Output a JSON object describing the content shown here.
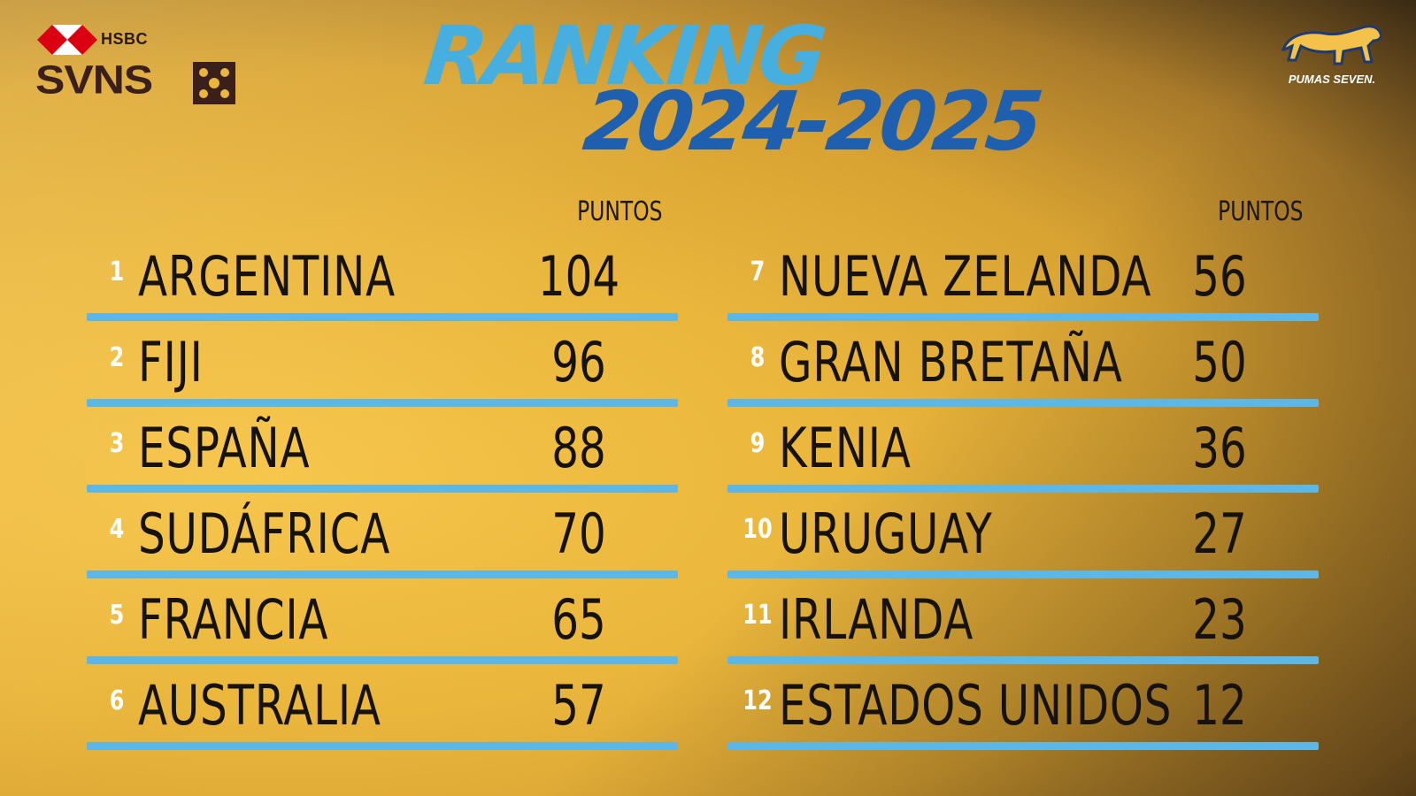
{
  "branding": {
    "hsbc": "HSBC",
    "svns": "SVNS",
    "pumas": "PUMAS SEVEN."
  },
  "colors": {
    "title_light_blue": "#47aee0",
    "title_dark_blue": "#1f5fb0",
    "row_bar": "#5cb6e6",
    "background": "#eab63c"
  },
  "title": {
    "line1": "RANKING",
    "line2": "2024-2025"
  },
  "points_header": "PUNTOS",
  "rankings": {
    "left": [
      {
        "rank": "1",
        "team": "ARGENTINA",
        "points": "104"
      },
      {
        "rank": "2",
        "team": "FIJI",
        "points": "96"
      },
      {
        "rank": "3",
        "team": "ESPAÑA",
        "points": "88"
      },
      {
        "rank": "4",
        "team": "SUDÁFRICA",
        "points": "70"
      },
      {
        "rank": "5",
        "team": "FRANCIA",
        "points": "65"
      },
      {
        "rank": "6",
        "team": "AUSTRALIA",
        "points": "57"
      }
    ],
    "right": [
      {
        "rank": "7",
        "team": "NUEVA ZELANDA",
        "points": "56"
      },
      {
        "rank": "8",
        "team": "GRAN BRETAÑA",
        "points": "50"
      },
      {
        "rank": "9",
        "team": "KENIA",
        "points": "36"
      },
      {
        "rank": "10",
        "team": "URUGUAY",
        "points": "27"
      },
      {
        "rank": "11",
        "team": "IRLANDA",
        "points": "23"
      },
      {
        "rank": "12",
        "team": "ESTADOS UNIDOS",
        "points": "12"
      }
    ]
  }
}
